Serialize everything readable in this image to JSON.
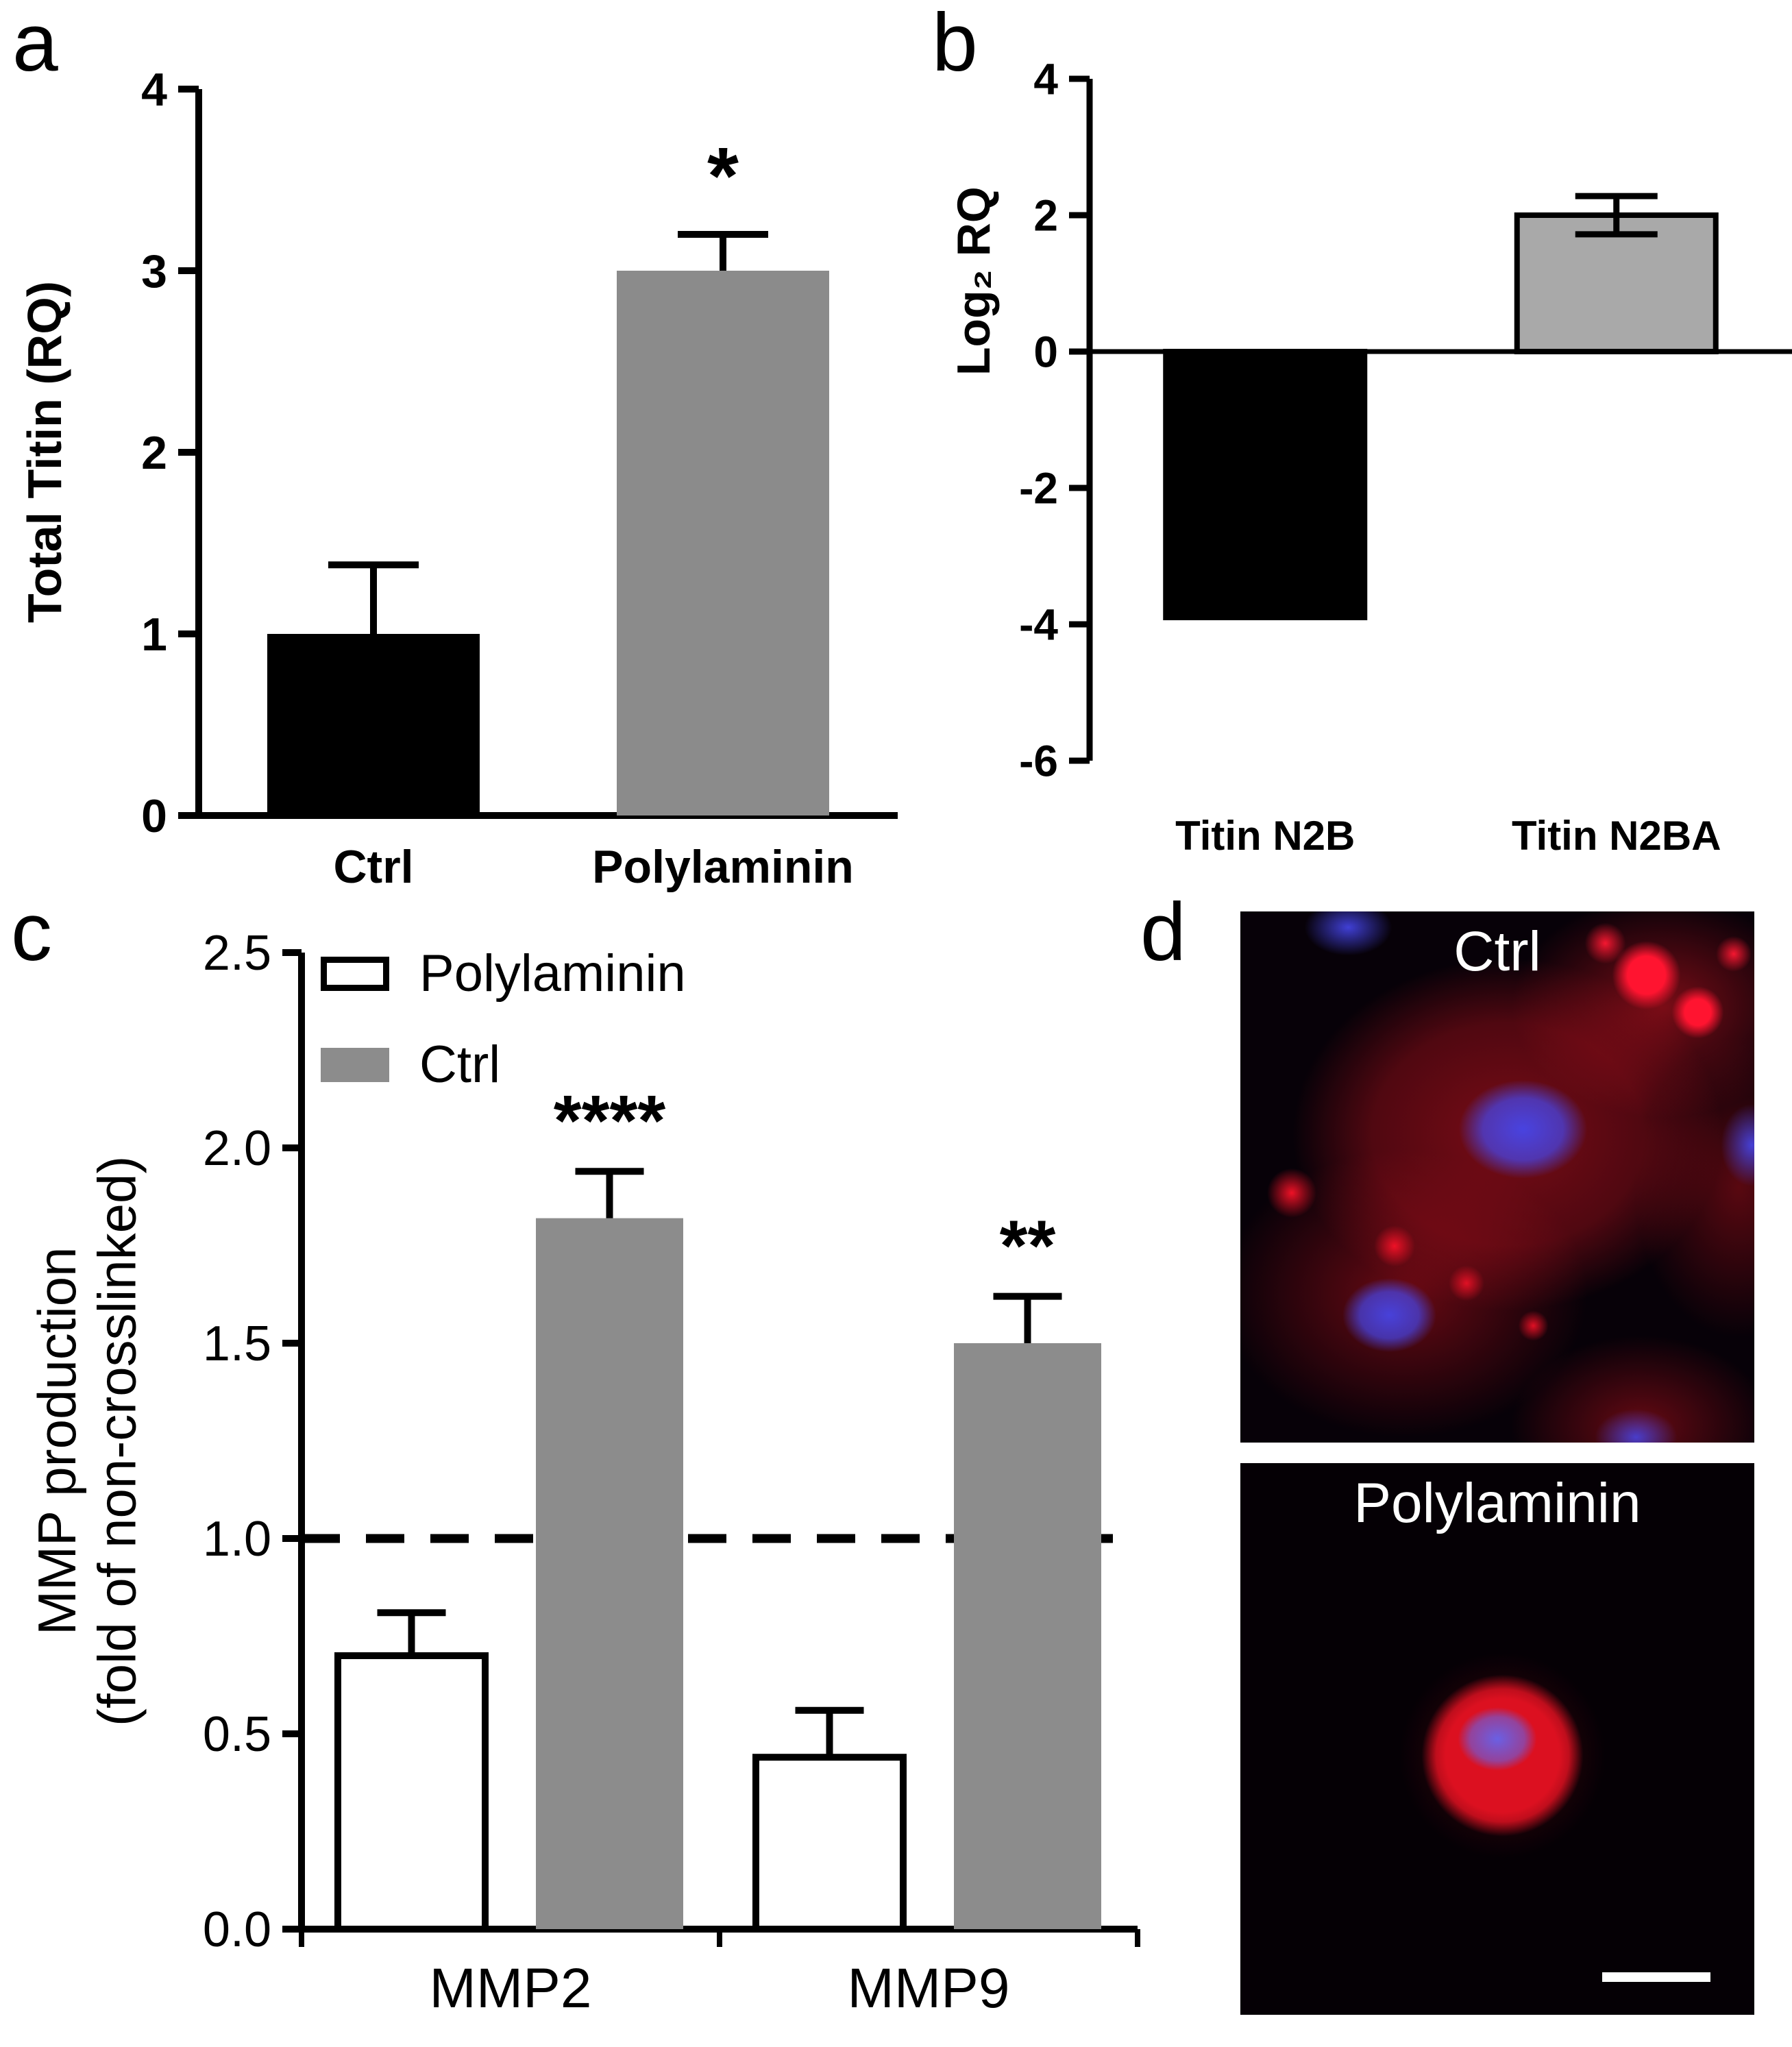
{
  "panels": {
    "a": {
      "letter": "a"
    },
    "b": {
      "letter": "b"
    },
    "c": {
      "letter": "c"
    },
    "d": {
      "letter": "d",
      "images": [
        {
          "title": "Ctrl"
        },
        {
          "title": "Polylaminin"
        }
      ],
      "stain_colors": {
        "cytoplasm_red": "#dc1020",
        "nuclei_blue": "#4646eb",
        "background": "#060106",
        "scale_bar": "#ffffff"
      }
    }
  },
  "chart_data": [
    {
      "id": "panel-a",
      "type": "bar",
      "title": "",
      "ylabel": "Total Titin (RQ)",
      "categories": [
        "Ctrl",
        "Polylaminin"
      ],
      "values": [
        1.0,
        3.0
      ],
      "errors": [
        0.38,
        0.2
      ],
      "bar_colors": [
        "#000000",
        "#8b8b8b"
      ],
      "ylim": [
        0,
        4
      ],
      "yticks": [
        0,
        1,
        2,
        3,
        4
      ],
      "ytick_labels": [
        "0",
        "1",
        "2",
        "3",
        "4"
      ],
      "baseline": 0,
      "annotations": [
        {
          "index": 1,
          "text": "*"
        }
      ]
    },
    {
      "id": "panel-b",
      "type": "bar",
      "title": "",
      "ylabel": "Log₂ RQ",
      "categories": [
        "Titin N2B",
        "Titin N2BA"
      ],
      "values": [
        -3.9,
        2.0
      ],
      "errors": [
        0,
        0.28
      ],
      "error_styles": [
        "up",
        "both"
      ],
      "bar_colors": [
        "#000000",
        "#a9a9a9"
      ],
      "bar_strokes": [
        "#000000",
        "#000000"
      ],
      "ylim": [
        -6,
        4
      ],
      "yticks": [
        4,
        2,
        0,
        -2,
        -4,
        -6
      ],
      "ytick_labels": [
        "4",
        "2",
        "0",
        "-2",
        "-4",
        "-6"
      ],
      "baseline": 0,
      "annotations": []
    },
    {
      "id": "panel-c",
      "type": "grouped-bar",
      "title": "",
      "ylabel": "MMP production (fold of non-crosslinked)",
      "ylabel_lines": [
        "MMP production",
        "(fold of non-crosslinked)"
      ],
      "categories": [
        "MMP2",
        "MMP9"
      ],
      "series": [
        {
          "name": "Polylaminin",
          "color": "#ffffff",
          "stroke": "#000000",
          "values": [
            0.7,
            0.44
          ],
          "errors": [
            0.11,
            0.12
          ]
        },
        {
          "name": "Ctrl",
          "color": "#8c8c8c",
          "values": [
            1.82,
            1.5
          ],
          "errors": [
            0.12,
            0.12
          ]
        }
      ],
      "reference_line": 1.0,
      "ylim": [
        0,
        2.5
      ],
      "yticks": [
        0,
        0.5,
        1,
        1.5,
        2,
        2.5
      ],
      "ytick_labels": [
        "0.0",
        "0.5",
        "1.0",
        "1.5",
        "2.0",
        "2.5"
      ],
      "baseline": 0,
      "legend_position": "top-left",
      "annotations": [
        {
          "cat": 0,
          "series": 1,
          "text": "****"
        },
        {
          "cat": 1,
          "series": 1,
          "text": "**"
        }
      ]
    }
  ]
}
